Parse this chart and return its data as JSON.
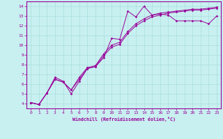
{
  "xlabel": "Windchill (Refroidissement éolien,°C)",
  "bg_color": "#c8f0f0",
  "line_color": "#990099",
  "grid_color": "#aadddd",
  "xlim": [
    -0.5,
    23.5
  ],
  "ylim": [
    3.5,
    14.5
  ],
  "xticks": [
    0,
    1,
    2,
    3,
    4,
    5,
    6,
    7,
    8,
    9,
    10,
    11,
    12,
    13,
    14,
    15,
    16,
    17,
    18,
    19,
    20,
    21,
    22,
    23
  ],
  "yticks": [
    4,
    5,
    6,
    7,
    8,
    9,
    10,
    11,
    12,
    13,
    14
  ],
  "series1_x": [
    0,
    1,
    2,
    3,
    4,
    5,
    6,
    7,
    8,
    9,
    10,
    11,
    12,
    13,
    14,
    15,
    16,
    17,
    18,
    19,
    20,
    21,
    22,
    23
  ],
  "series1_y": [
    4.1,
    3.9,
    5.1,
    6.7,
    6.3,
    5.0,
    6.3,
    7.6,
    7.8,
    8.7,
    10.7,
    10.6,
    13.5,
    12.9,
    14.0,
    13.1,
    13.2,
    13.1,
    12.5,
    12.5,
    12.5,
    12.5,
    12.2,
    13.0
  ],
  "series2_x": [
    0,
    1,
    2,
    3,
    4,
    5,
    6,
    7,
    8,
    9,
    10,
    11,
    12,
    13,
    14,
    15,
    16,
    17,
    18,
    19,
    20,
    21,
    22,
    23
  ],
  "series2_y": [
    4.1,
    3.9,
    5.1,
    6.5,
    6.2,
    5.4,
    6.5,
    7.6,
    7.8,
    8.9,
    9.8,
    10.1,
    11.2,
    12.0,
    12.5,
    12.9,
    13.1,
    13.3,
    13.4,
    13.5,
    13.6,
    13.6,
    13.7,
    13.8
  ],
  "series3_x": [
    0,
    1,
    2,
    3,
    4,
    5,
    6,
    7,
    8,
    9,
    10,
    11,
    12,
    13,
    14,
    15,
    16,
    17,
    18,
    19,
    20,
    21,
    22,
    23
  ],
  "series3_y": [
    4.1,
    3.9,
    5.1,
    6.5,
    6.2,
    5.4,
    6.7,
    7.7,
    7.9,
    9.1,
    10.0,
    10.3,
    11.4,
    12.2,
    12.7,
    13.1,
    13.3,
    13.4,
    13.5,
    13.6,
    13.7,
    13.7,
    13.8,
    13.9
  ]
}
